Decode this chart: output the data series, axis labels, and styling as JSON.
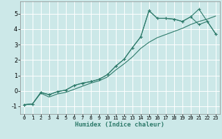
{
  "xlabel": "Humidex (Indice chaleur)",
  "bg_color": "#cce8e8",
  "grid_color": "#ffffff",
  "line_color": "#2d7a6a",
  "xlim": [
    -0.5,
    23.5
  ],
  "ylim": [
    -1.5,
    5.8
  ],
  "yticks": [
    -1,
    0,
    1,
    2,
    3,
    4,
    5
  ],
  "xticks": [
    0,
    1,
    2,
    3,
    4,
    5,
    6,
    7,
    8,
    9,
    10,
    11,
    12,
    13,
    14,
    15,
    16,
    17,
    18,
    19,
    20,
    21,
    22,
    23
  ],
  "line1_x": [
    0,
    1,
    2,
    3,
    4,
    5,
    6,
    7,
    8,
    9,
    10,
    11,
    12,
    13,
    14,
    15,
    16,
    17,
    18,
    19,
    20,
    21,
    22,
    23
  ],
  "line1_y": [
    -0.9,
    -0.85,
    -0.1,
    -0.25,
    -0.05,
    0.05,
    0.35,
    0.5,
    0.6,
    0.75,
    1.05,
    1.6,
    2.05,
    2.8,
    3.5,
    5.2,
    4.7,
    4.7,
    4.65,
    4.5,
    4.8,
    4.3,
    4.5,
    3.7
  ],
  "line2_x": [
    0,
    1,
    2,
    3,
    4,
    5,
    6,
    7,
    8,
    9,
    10,
    11,
    12,
    13,
    14,
    15,
    16,
    17,
    18,
    19,
    20,
    21,
    22,
    23
  ],
  "line2_y": [
    -0.9,
    -0.85,
    -0.1,
    -0.25,
    -0.05,
    0.05,
    0.35,
    0.5,
    0.6,
    0.75,
    1.05,
    1.6,
    2.05,
    2.8,
    3.5,
    5.2,
    4.7,
    4.7,
    4.65,
    4.5,
    4.8,
    5.3,
    4.5,
    3.7
  ],
  "line3_x": [
    0,
    1,
    2,
    3,
    4,
    5,
    6,
    7,
    8,
    9,
    10,
    11,
    12,
    13,
    14,
    15,
    16,
    17,
    18,
    19,
    20,
    21,
    22,
    23
  ],
  "line3_y": [
    -0.9,
    -0.85,
    -0.15,
    -0.4,
    -0.2,
    -0.1,
    0.1,
    0.3,
    0.5,
    0.65,
    0.9,
    1.35,
    1.75,
    2.2,
    2.75,
    3.15,
    3.45,
    3.65,
    3.85,
    4.05,
    4.3,
    4.5,
    4.65,
    4.85
  ]
}
